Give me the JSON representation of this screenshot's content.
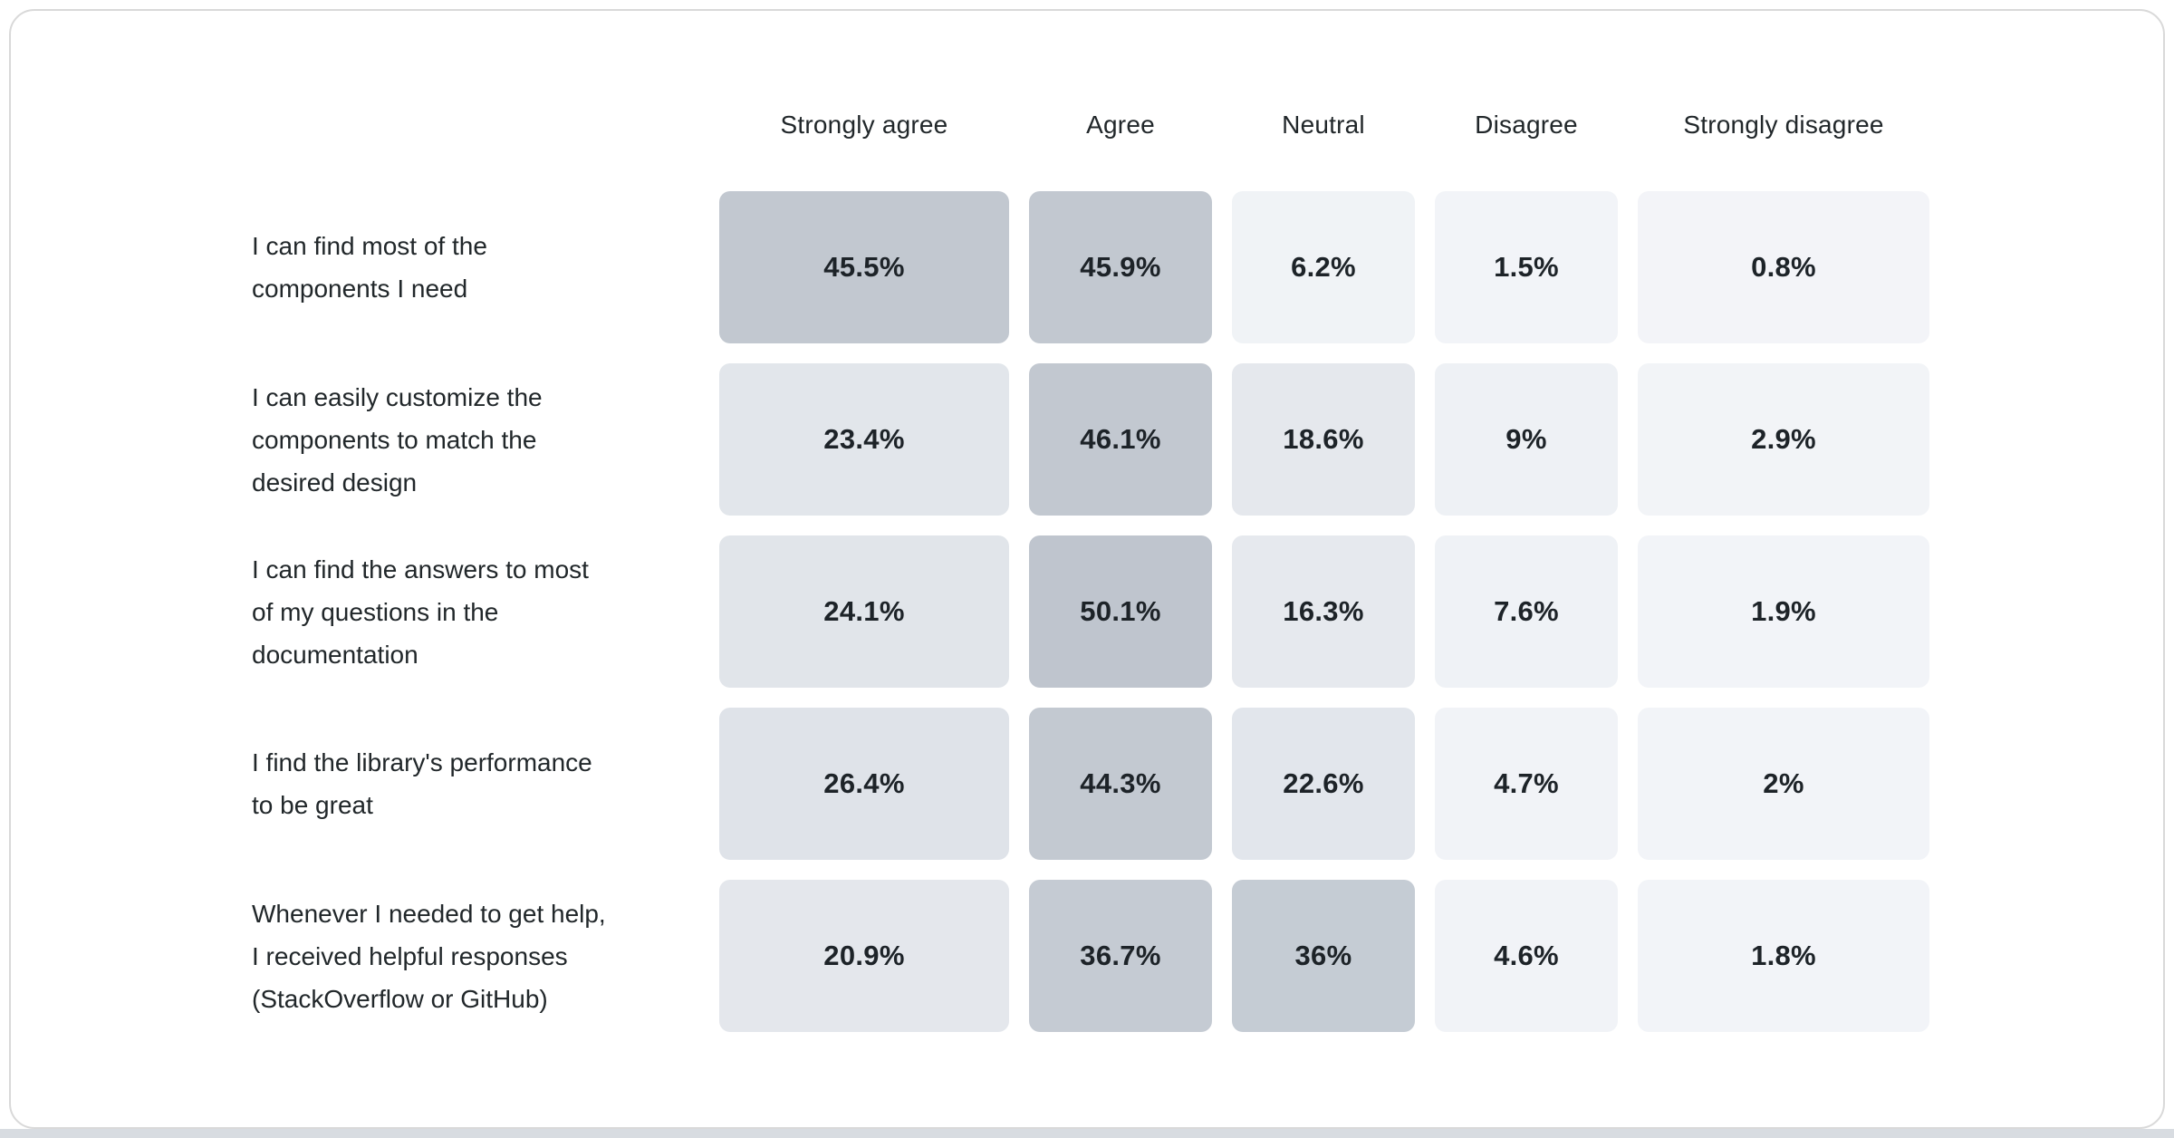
{
  "page": {
    "card_bg": "#ffffff",
    "card_border_color": "#d9d9d9",
    "bottom_strip_color": "#d8dce1",
    "text_color": "#21272a",
    "value_text_color": "#1d2328"
  },
  "chart_data": {
    "type": "heatmap",
    "title": "",
    "legend_position": "none",
    "columns": [
      "Strongly agree",
      "Agree",
      "Neutral",
      "Disagree",
      "Strongly disagree"
    ],
    "color_scale": {
      "low": "#f2f4f8",
      "high": "#bfc5ce",
      "domain": [
        0,
        50.1
      ]
    },
    "rows": [
      {
        "label": "I can find most of the\ncomponents I need",
        "cells": [
          {
            "display": "45.5%",
            "value": 45.5,
            "color": "#c2c8d0"
          },
          {
            "display": "45.9%",
            "value": 45.9,
            "color": "#c2c8d0"
          },
          {
            "display": "6.2%",
            "value": 6.2,
            "color": "#f0f3f6"
          },
          {
            "display": "1.5%",
            "value": 1.5,
            "color": "#f2f4f8"
          },
          {
            "display": "0.8%",
            "value": 0.8,
            "color": "#f3f4f8"
          }
        ]
      },
      {
        "label": "I can easily customize the\ncomponents to match the\ndesired design",
        "cells": [
          {
            "display": "23.4%",
            "value": 23.4,
            "color": "#e2e6eb"
          },
          {
            "display": "46.1%",
            "value": 46.1,
            "color": "#c2c8d0"
          },
          {
            "display": "18.6%",
            "value": 18.6,
            "color": "#e5e8ed"
          },
          {
            "display": "9%",
            "value": 9,
            "color": "#eef1f5"
          },
          {
            "display": "2.9%",
            "value": 2.9,
            "color": "#f2f4f7"
          }
        ]
      },
      {
        "label": "I can find the answers to most\nof my questions in the\ndocumentation",
        "cells": [
          {
            "display": "24.1%",
            "value": 24.1,
            "color": "#e1e5ea"
          },
          {
            "display": "50.1%",
            "value": 50.1,
            "color": "#bfc5ce"
          },
          {
            "display": "16.3%",
            "value": 16.3,
            "color": "#e6e9ee"
          },
          {
            "display": "7.6%",
            "value": 7.6,
            "color": "#eff2f6"
          },
          {
            "display": "1.9%",
            "value": 1.9,
            "color": "#f2f4f8"
          }
        ]
      },
      {
        "label": "I find the library's performance\nto be great",
        "cells": [
          {
            "display": "26.4%",
            "value": 26.4,
            "color": "#dfe3e9"
          },
          {
            "display": "44.3%",
            "value": 44.3,
            "color": "#c3c9d1"
          },
          {
            "display": "22.6%",
            "value": 22.6,
            "color": "#e2e6ec"
          },
          {
            "display": "4.7%",
            "value": 4.7,
            "color": "#f1f3f7"
          },
          {
            "display": "2%",
            "value": 2,
            "color": "#f2f4f8"
          }
        ]
      },
      {
        "label": "Whenever I needed to get help,\nI received helpful responses\n(StackOverflow or GitHub)",
        "cells": [
          {
            "display": "20.9%",
            "value": 20.9,
            "color": "#e4e7ec"
          },
          {
            "display": "36.7%",
            "value": 36.7,
            "color": "#c5cbd3"
          },
          {
            "display": "36%",
            "value": 36,
            "color": "#c5ccd4"
          },
          {
            "display": "4.6%",
            "value": 4.6,
            "color": "#f1f3f7"
          },
          {
            "display": "1.8%",
            "value": 1.8,
            "color": "#f2f4f8"
          }
        ]
      }
    ]
  }
}
